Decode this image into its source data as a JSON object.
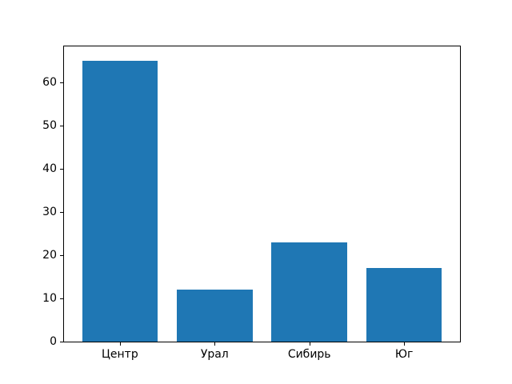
{
  "chart_data": {
    "type": "bar",
    "categories": [
      "Центр",
      "Урал",
      "Сибирь",
      "Юг"
    ],
    "values": [
      65,
      12,
      23,
      17
    ],
    "title": "",
    "xlabel": "",
    "ylabel": "",
    "yticks": [
      0,
      10,
      20,
      30,
      40,
      50,
      60
    ],
    "ylim": [
      0,
      68.25
    ],
    "xlim": [
      -0.59,
      3.59
    ],
    "bar_width": 0.8,
    "bar_color": "#1f77b4",
    "grid": false,
    "legend_position": "none",
    "background_color": "#ffffff",
    "spine_color": "#000000"
  }
}
